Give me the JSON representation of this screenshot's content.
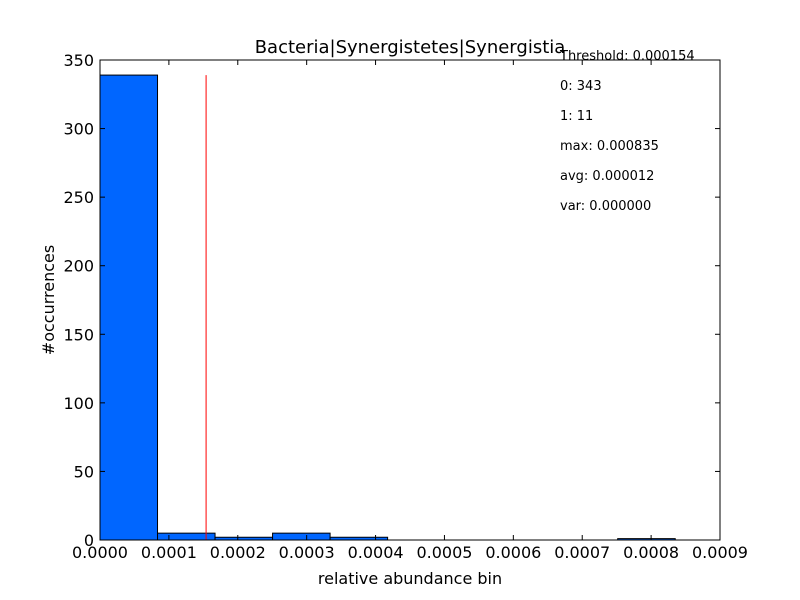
{
  "chart_data": {
    "type": "bar",
    "title": "Bacteria|Synergistetes|Synergistia",
    "xlabel": "relative abundance bin",
    "ylabel": "#occurrences",
    "xlim": [
      0.0,
      0.0009
    ],
    "ylim": [
      0,
      350
    ],
    "xticks": [
      "0.0000",
      "0.0001",
      "0.0002",
      "0.0003",
      "0.0004",
      "0.0005",
      "0.0006",
      "0.0007",
      "0.0008",
      "0.0009"
    ],
    "yticks": [
      "0",
      "50",
      "100",
      "150",
      "200",
      "250",
      "300",
      "350"
    ],
    "bins": [
      {
        "x0": 0.0,
        "x1": 8.35e-05,
        "count": 339
      },
      {
        "x0": 8.35e-05,
        "x1": 0.000167,
        "count": 5
      },
      {
        "x0": 0.000167,
        "x1": 0.0002505,
        "count": 2
      },
      {
        "x0": 0.0002505,
        "x1": 0.000334,
        "count": 5
      },
      {
        "x0": 0.000334,
        "x1": 0.0004175,
        "count": 2
      },
      {
        "x0": 0.0004175,
        "x1": 0.000501,
        "count": 0
      },
      {
        "x0": 0.000501,
        "x1": 0.0005845,
        "count": 0
      },
      {
        "x0": 0.0005845,
        "x1": 0.000668,
        "count": 0
      },
      {
        "x0": 0.000668,
        "x1": 0.0007515,
        "count": 0
      },
      {
        "x0": 0.0007515,
        "x1": 0.000835,
        "count": 1
      }
    ],
    "threshold": {
      "value": 0.000154,
      "line_top": 339
    },
    "bar_color": "#0066ff",
    "threshold_color": "#ff0000",
    "grid": false,
    "stats": [
      "Threshold: 0.000154",
      "0: 343",
      "1: 11",
      "max: 0.000835",
      "avg: 0.000012",
      "var: 0.000000"
    ]
  }
}
